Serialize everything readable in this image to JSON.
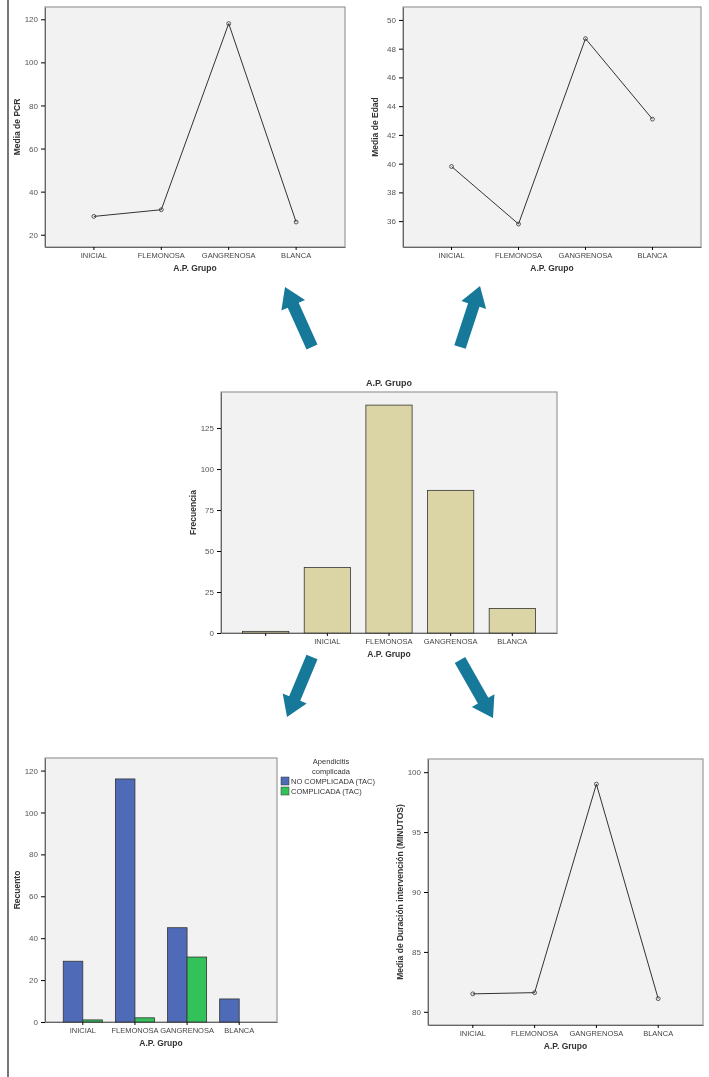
{
  "chart_data": [
    {
      "type": "line",
      "xlabel": "A.P. Grupo",
      "ylabel": "Media de PCR",
      "categories": [
        "INICIAL",
        "FLEMONOSA",
        "GANGRENOSA",
        "BLANCA"
      ],
      "values": [
        28.5,
        31.6,
        118,
        25.9
      ],
      "color": "#333333",
      "marker": "circle",
      "ylim": [
        14.3,
        125.7
      ],
      "yticks": [
        20,
        40,
        60,
        80,
        100,
        120
      ]
    },
    {
      "type": "line",
      "xlabel": "A.P. Grupo",
      "ylabel": "Media de Edad",
      "categories": [
        "INICIAL",
        "FLEMONOSA",
        "GANGRENOSA",
        "BLANCA"
      ],
      "values": [
        39.8,
        35.8,
        48.7,
        43.1
      ],
      "color": "#333333",
      "marker": "circle",
      "ylim": [
        34.2,
        50.9
      ],
      "yticks": [
        36,
        38,
        40,
        42,
        44,
        46,
        48,
        50
      ]
    },
    {
      "type": "bar",
      "title": "A.P. Grupo",
      "xlabel": "A.P. Grupo",
      "ylabel": "Frecuencia",
      "categories": [
        null,
        "INICIAL",
        "FLEMONOSA",
        "GANGRENOSA",
        "BLANCA"
      ],
      "values": [
        1,
        40,
        139,
        87,
        15
      ],
      "color": "#dbd5a6",
      "ylim": [
        0,
        147
      ],
      "yticks": [
        0,
        25,
        50,
        75,
        100,
        125
      ]
    },
    {
      "type": "bar",
      "xlabel": "A.P. Grupo",
      "ylabel": "Recuento",
      "categories": [
        "INICIAL",
        "FLEMONOSA",
        "GANGRENOSA",
        "BLANCA"
      ],
      "legend": "right",
      "legend_title": "Apendicitis complicada",
      "series": [
        {
          "name": "NO COMPLICADA (TAC)",
          "color": "#4f6bb8",
          "values": [
            29,
            116,
            45,
            11
          ]
        },
        {
          "name": "COMPLICADA (TAC)",
          "color": "#33c15a",
          "values": [
            1,
            2,
            31,
            null
          ]
        }
      ],
      "ylim": [
        0,
        126
      ],
      "yticks": [
        0,
        20,
        40,
        60,
        80,
        100,
        120
      ]
    },
    {
      "type": "line",
      "xlabel": "A.P. Grupo",
      "ylabel": "Media de Duración intervención (MINUTOS)",
      "categories": [
        "INICIAL",
        "FLEMONOSA",
        "GANGRENOSA",
        "BLANCA"
      ],
      "values": [
        81.5,
        81.6,
        99.0,
        81.1
      ],
      "color": "#333333",
      "marker": "circle",
      "ylim": [
        78.9,
        101.1
      ],
      "yticks": [
        80,
        85,
        90,
        95,
        100
      ]
    }
  ]
}
